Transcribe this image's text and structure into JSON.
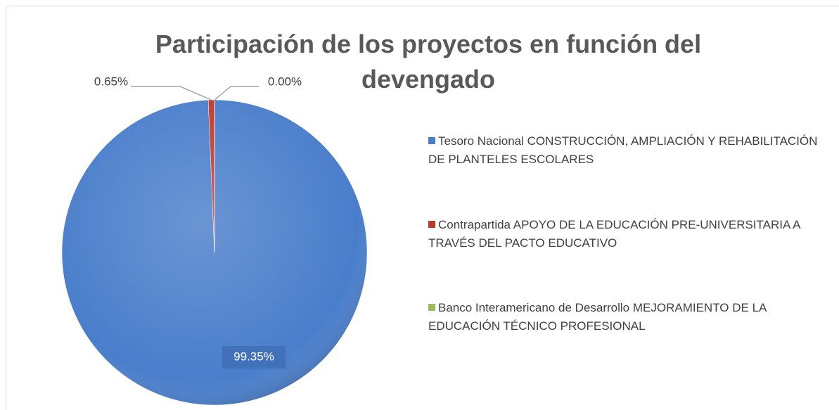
{
  "chart_data": {
    "type": "pie",
    "title": "Participación de los proyectos en función del devengado",
    "categories": [
      "Tesoro Nacional CONSTRUCCIÓN, AMPLIACIÓN Y REHABILITACIÓN DE PLANTELES ESCOLARES",
      "Contrapartida APOYO DE LA EDUCACIÓN PRE-UNIVERSITARIA A TRAVÉS DEL PACTO EDUCATIVO",
      "Banco Interamericano de Desarrollo MEJORAMIENTO DE LA EDUCACIÓN TÉCNICO PROFESIONAL"
    ],
    "values": [
      99.35,
      0.65,
      0.0
    ],
    "value_labels": [
      "99.35%",
      "0.65%",
      "0.00%"
    ],
    "colors": [
      "#4a7ecb",
      "#c0392b",
      "#9bbb59"
    ],
    "legend": "right"
  }
}
